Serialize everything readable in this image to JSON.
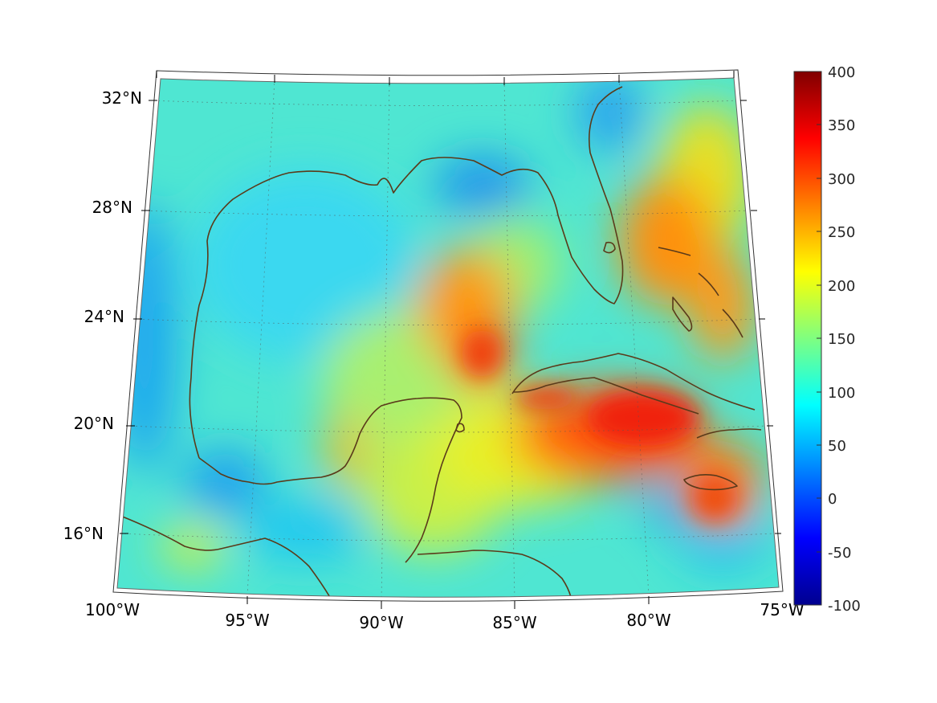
{
  "map": {
    "lon_ticks": [
      "100°W",
      "95°W",
      "90°W",
      "85°W",
      "80°W",
      "75°W"
    ],
    "lat_ticks": [
      "16°N",
      "20°N",
      "24°N",
      "28°N",
      "32°N"
    ]
  },
  "colorbar": {
    "ticks": [
      "400",
      "350",
      "300",
      "250",
      "200",
      "150",
      "100",
      "50",
      "0",
      "-50",
      "-100"
    ],
    "min": -100,
    "max": 400,
    "colormap": "jet"
  },
  "colors": {
    "coastline": "#5a3a1a",
    "grid": "#444444"
  }
}
